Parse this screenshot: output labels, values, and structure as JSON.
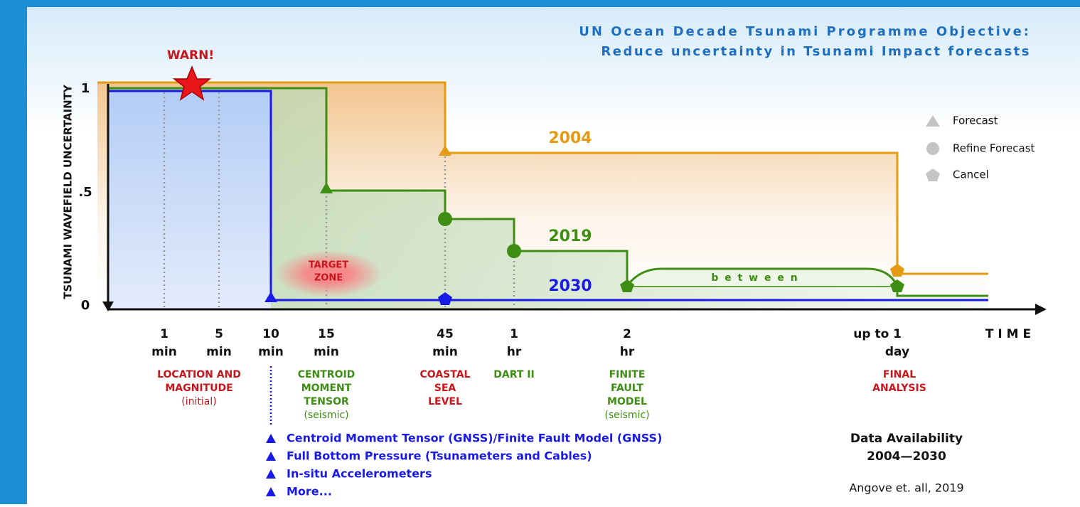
{
  "title": [
    "UN Ocean Decade Tsunami Programme Objective:",
    "Reduce uncertainty in Tsunami Impact forecasts"
  ],
  "y_axis": {
    "label": "TSUNAMI WAVEFIELD UNCERTAINTY",
    "ticks": [
      "1",
      ".5",
      "0"
    ]
  },
  "x_axis": {
    "label": "T I M E",
    "ticks": [
      [
        "1",
        "min"
      ],
      [
        "5",
        "min"
      ],
      [
        "10",
        "min"
      ],
      [
        "15",
        "min"
      ],
      [
        "45",
        "min"
      ],
      [
        "1",
        "hr"
      ],
      [
        "2",
        "hr"
      ],
      [
        "up to  1",
        "day"
      ]
    ]
  },
  "warn": "WARN!",
  "target_zone": [
    "TARGET",
    "ZONE"
  ],
  "series": [
    "2004",
    "2019",
    "2030"
  ],
  "between": "b e t w e e n",
  "legend": [
    "Forecast",
    "Refine Forecast",
    "Cancel"
  ],
  "events": [
    [
      "LOCATION AND",
      "MAGNITUDE",
      "(initial)"
    ],
    [
      "CENTROID",
      "MOMENT",
      "TENSOR",
      "(seismic)"
    ],
    [
      "COASTAL",
      "SEA",
      "LEVEL"
    ],
    [
      "DART II"
    ],
    [
      "FINITE",
      "FAULT",
      "MODEL",
      "(seismic)"
    ],
    [
      "FINAL",
      "ANALYSIS"
    ]
  ],
  "future_data": [
    "Centroid Moment Tensor (GNSS)/Finite Fault Model (GNSS)",
    "Full Bottom Pressure (Tsunameters and Cables)",
    "In-situ Accelerometers",
    "More..."
  ],
  "availability": [
    "Data Availability",
    "2004—2030"
  ],
  "citation": "Angove et. all, 2019"
}
